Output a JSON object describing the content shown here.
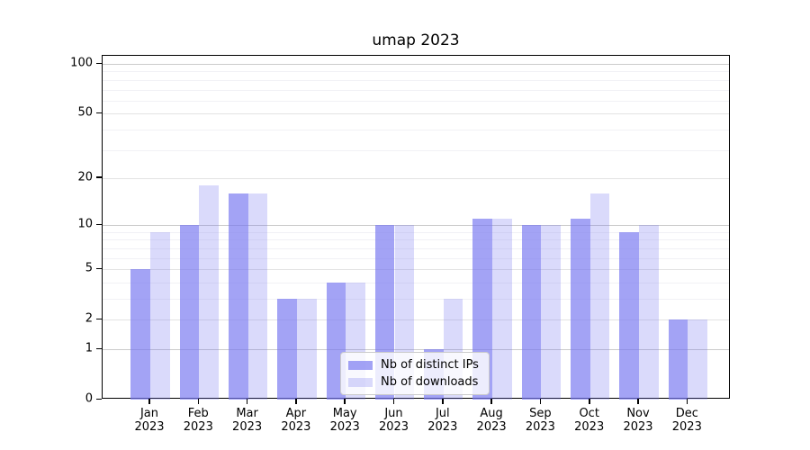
{
  "title": "umap 2023",
  "chart_data": {
    "type": "bar",
    "title": "umap 2023",
    "categories": [
      "Jan\n2023",
      "Feb\n2023",
      "Mar\n2023",
      "Apr\n2023",
      "May\n2023",
      "Jun\n2023",
      "Jul\n2023",
      "Aug\n2023",
      "Sep\n2023",
      "Oct\n2023",
      "Nov\n2023",
      "Dec\n2023"
    ],
    "series": [
      {
        "name": "Nb of distinct IPs",
        "color": "rgba(120,120,240,0.68)",
        "values": [
          5,
          10,
          16,
          3,
          4,
          10,
          1,
          11,
          10,
          11,
          9,
          2
        ]
      },
      {
        "name": "Nb of downloads",
        "color": "rgba(120,120,240,0.27)",
        "values": [
          9,
          18,
          16,
          3,
          4,
          10,
          3,
          11,
          10,
          16,
          10,
          2
        ]
      }
    ],
    "yscale": "log1p",
    "ylim": [
      0,
      110
    ],
    "y_ticks": [
      0,
      1,
      2,
      5,
      10,
      20,
      50,
      100
    ],
    "y_decade_gridlines": [
      1,
      10,
      100
    ],
    "y_major_gridlines": [
      2,
      5,
      20,
      50
    ],
    "y_minor_gridlines": [
      3,
      4,
      6,
      7,
      8,
      9,
      30,
      40,
      60,
      70,
      80,
      90
    ],
    "xlabel": "",
    "ylabel": "",
    "grid": true,
    "legend_position": "lower center"
  },
  "colors": {
    "background": "#ffffff",
    "spine": "#000000",
    "grid_decade": "#cbcbcb",
    "grid_major": "#e3e3e3",
    "grid_minor": "#f1f1f5",
    "text": "#000000",
    "legend_border": "#cccccc"
  }
}
